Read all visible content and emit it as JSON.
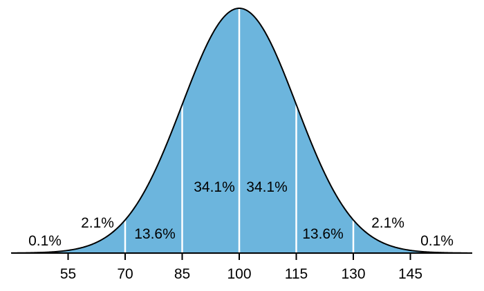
{
  "chart_data": {
    "type": "area",
    "title": "",
    "xlabel": "",
    "ylabel": "",
    "distribution": "normal",
    "mean": 100,
    "sd": 15,
    "xlim": [
      40,
      160
    ],
    "tick_values": [
      55,
      70,
      85,
      100,
      115,
      130,
      145
    ],
    "tick_labels": [
      "55",
      "70",
      "85",
      "100",
      "115",
      "130",
      "145"
    ],
    "boundaries": [
      70,
      85,
      100,
      115,
      130
    ],
    "regions": [
      {
        "label": "0.1%",
        "value": 0.1,
        "x_center": 47.5
      },
      {
        "label": "2.1%",
        "value": 2.1,
        "x_center": 62.5
      },
      {
        "label": "13.6%",
        "value": 13.6,
        "x_center": 77.5
      },
      {
        "label": "34.1%",
        "value": 34.1,
        "x_center": 92.5
      },
      {
        "label": "34.1%",
        "value": 34.1,
        "x_center": 107.5
      },
      {
        "label": "13.6%",
        "value": 13.6,
        "x_center": 122.5
      },
      {
        "label": "2.1%",
        "value": 2.1,
        "x_center": 137.5
      },
      {
        "label": "0.1%",
        "value": 0.1,
        "x_center": 152.5
      }
    ],
    "grid": false,
    "legend": "none",
    "colors": {
      "fill": "#6cb5dd",
      "curve": "#000000",
      "divider": "#ffffff",
      "axis": "#000000"
    }
  }
}
